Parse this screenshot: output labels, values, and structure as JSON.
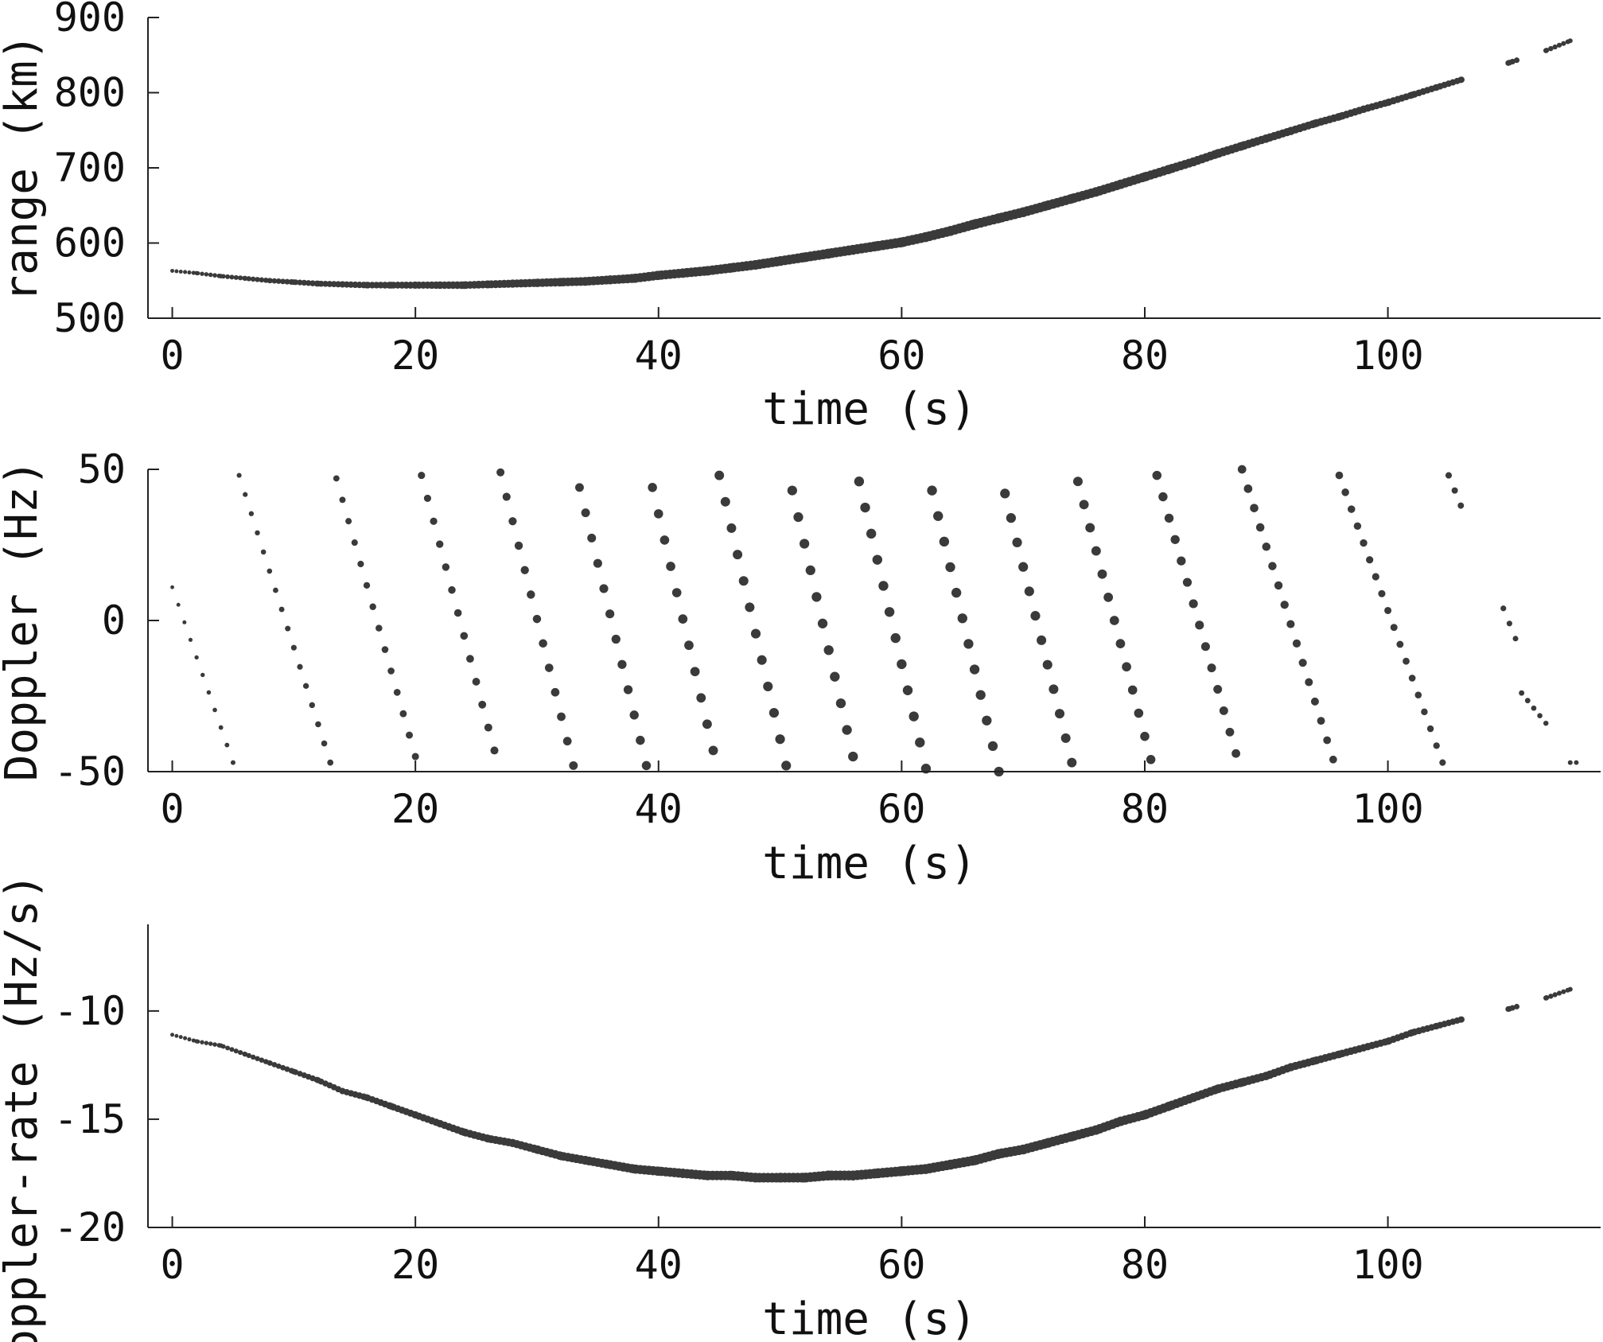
{
  "style": {
    "point_color": "#3a3a3a",
    "axis_color": "#222222"
  },
  "chart_data": [
    {
      "type": "scatter",
      "xlabel": "time (s)",
      "ylabel": "range (km)",
      "xlim": [
        -2,
        117.5
      ],
      "ylim": [
        500,
        900
      ],
      "xticks": [
        "0",
        "20",
        "40",
        "60",
        "80",
        "100"
      ],
      "yticks": [
        "900",
        "800",
        "700",
        "600",
        "500"
      ],
      "series": [
        {
          "x": [
            0,
            2,
            4,
            6,
            8,
            10,
            12,
            14,
            16,
            18,
            20,
            22,
            24,
            26,
            28,
            30,
            32,
            34,
            36,
            38,
            40,
            42,
            44,
            46,
            48,
            50,
            52,
            54,
            56,
            58,
            60,
            62,
            64,
            66,
            68,
            70,
            72,
            74,
            76,
            78,
            80,
            82,
            84,
            86,
            88,
            90,
            92,
            94,
            96,
            98,
            100,
            102,
            104,
            106,
            110,
            113,
            115
          ],
          "y": [
            563,
            560,
            556,
            553,
            550,
            548,
            546,
            545,
            544,
            544,
            544,
            544,
            544,
            545,
            546,
            547,
            548,
            549,
            551,
            553,
            557,
            560,
            563,
            567,
            571,
            576,
            581,
            586,
            591,
            596,
            601,
            608,
            616,
            625,
            633,
            641,
            650,
            659,
            668,
            678,
            688,
            698,
            708,
            719,
            729,
            739,
            749,
            759,
            768,
            778,
            787,
            797,
            807,
            817,
            840,
            856,
            869
          ]
        }
      ]
    },
    {
      "type": "scatter",
      "xlabel": "time (s)",
      "ylabel": "Doppler (Hz)",
      "xlim": [
        -2,
        117.5
      ],
      "ylim": [
        -50,
        50
      ],
      "xticks": [
        "0",
        "20",
        "40",
        "60",
        "80",
        "100"
      ],
      "yticks": [
        "50",
        "0",
        "-50"
      ],
      "note_points": "sawtooth: Doppler wraps between +50 and -50 Hz",
      "series": [
        {
          "segments": [
            {
              "t0": 0.0,
              "t1": 5.0,
              "f0": 11,
              "f1": -47
            },
            {
              "t0": 5.5,
              "t1": 13.0,
              "f0": 48,
              "f1": -47
            },
            {
              "t0": 13.5,
              "t1": 20.0,
              "f0": 47,
              "f1": -45
            },
            {
              "t0": 20.5,
              "t1": 26.5,
              "f0": 48,
              "f1": -43
            },
            {
              "t0": 27.0,
              "t1": 33.0,
              "f0": 49,
              "f1": -48
            },
            {
              "t0": 33.5,
              "t1": 39.0,
              "f0": 44,
              "f1": -48
            },
            {
              "t0": 39.5,
              "t1": 44.5,
              "f0": 44,
              "f1": -43
            },
            {
              "t0": 45.0,
              "t1": 50.5,
              "f0": 48,
              "f1": -48
            },
            {
              "t0": 51.0,
              "t1": 56.0,
              "f0": 43,
              "f1": -45
            },
            {
              "t0": 56.5,
              "t1": 62.0,
              "f0": 46,
              "f1": -49
            },
            {
              "t0": 62.5,
              "t1": 68.0,
              "f0": 43,
              "f1": -50
            },
            {
              "t0": 68.5,
              "t1": 74.0,
              "f0": 42,
              "f1": -47
            },
            {
              "t0": 74.5,
              "t1": 80.5,
              "f0": 46,
              "f1": -46
            },
            {
              "t0": 81.0,
              "t1": 87.5,
              "f0": 48,
              "f1": -44
            },
            {
              "t0": 88.0,
              "t1": 95.5,
              "f0": 50,
              "f1": -46
            },
            {
              "t0": 96.0,
              "t1": 104.5,
              "f0": 48,
              "f1": -47
            },
            {
              "t0": 105.0,
              "t1": 106.0,
              "f0": 48,
              "f1": 38
            },
            {
              "t0": 109.5,
              "t1": 110.5,
              "f0": 4,
              "f1": -6
            },
            {
              "t0": 111.0,
              "t1": 113.0,
              "f0": -24,
              "f1": -34
            },
            {
              "t0": 115.0,
              "t1": 115.5,
              "f0": -47,
              "f1": -47
            }
          ]
        }
      ]
    },
    {
      "type": "scatter",
      "xlabel": "time (s)",
      "ylabel": "Doppler-rate (Hz/s)",
      "xlim": [
        -2,
        117.5
      ],
      "ylim": [
        -20,
        -6
      ],
      "xticks": [
        "0",
        "20",
        "40",
        "60",
        "80",
        "100"
      ],
      "yticks": [
        "-10",
        "-15",
        "-20"
      ],
      "series": [
        {
          "x": [
            0,
            2,
            4,
            6,
            8,
            10,
            12,
            14,
            16,
            18,
            20,
            22,
            24,
            26,
            28,
            30,
            32,
            34,
            36,
            38,
            40,
            42,
            44,
            46,
            48,
            50,
            52,
            54,
            56,
            58,
            60,
            62,
            64,
            66,
            68,
            70,
            72,
            74,
            76,
            78,
            80,
            82,
            84,
            86,
            88,
            90,
            92,
            94,
            96,
            98,
            100,
            102,
            104,
            106,
            110,
            113,
            115
          ],
          "y": [
            -11.1,
            -11.4,
            -11.6,
            -12.0,
            -12.4,
            -12.8,
            -13.2,
            -13.7,
            -14.0,
            -14.4,
            -14.8,
            -15.2,
            -15.6,
            -15.9,
            -16.1,
            -16.4,
            -16.7,
            -16.9,
            -17.1,
            -17.3,
            -17.4,
            -17.5,
            -17.6,
            -17.6,
            -17.7,
            -17.7,
            -17.7,
            -17.6,
            -17.6,
            -17.5,
            -17.4,
            -17.3,
            -17.1,
            -16.9,
            -16.6,
            -16.4,
            -16.1,
            -15.8,
            -15.5,
            -15.1,
            -14.8,
            -14.4,
            -14.0,
            -13.6,
            -13.3,
            -13.0,
            -12.6,
            -12.3,
            -12.0,
            -11.7,
            -11.4,
            -11.0,
            -10.7,
            -10.4,
            -9.9,
            -9.4,
            -9.0
          ]
        }
      ]
    }
  ]
}
